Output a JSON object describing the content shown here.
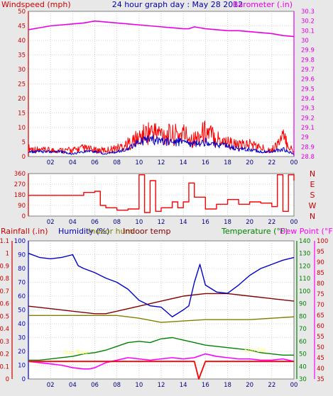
{
  "header": {
    "title": "24 hour graph day : May 28 2012",
    "left_label": "Windspeed (mph)",
    "right_label": "Barometer (.in)"
  },
  "colors": {
    "wind": "#ff0000",
    "gust": "#0000cc",
    "baro": "#e600e6",
    "axis_red": "#cc0000",
    "axis_blue": "#0000cc",
    "axis_green": "#008000",
    "humidity": "#0000cc",
    "indoor_hum": "#808000",
    "indoor_temp": "#800000",
    "temperature": "#008000",
    "dew_point": "#ff00ff",
    "rain": "#ff0000",
    "annotation": "#ffff66",
    "grid": "#b0b0b0"
  },
  "chart_data": [
    {
      "type": "line",
      "title": "24 hour graph day : May 28 2012",
      "xlabel": "",
      "x_ticks": [
        "02",
        "04",
        "06",
        "08",
        "10",
        "12",
        "14",
        "16",
        "18",
        "20",
        "22",
        "00"
      ],
      "x_range": [
        0,
        24
      ],
      "left_axis": {
        "label": "Windspeed (mph)",
        "ticks": [
          "0",
          "5",
          "10",
          "15",
          "20",
          "25",
          "30",
          "35",
          "40",
          "45",
          "50"
        ],
        "ylim": [
          0,
          50
        ]
      },
      "right_axis": {
        "label": "Barometer (.in)",
        "ticks": [
          "28.8",
          "28.9",
          "29",
          "29.1",
          "29.2",
          "29.3",
          "29.4",
          "29.5",
          "29.6",
          "29.7",
          "29.8",
          "29.9",
          "30",
          "30.1",
          "30.2",
          "30.3"
        ],
        "ylim": [
          28.8,
          30.3
        ]
      },
      "series": [
        {
          "axis": "right",
          "x": [
            0,
            1,
            2,
            3,
            4,
            5,
            6,
            7,
            8,
            9,
            10,
            11,
            12,
            13,
            14,
            14.5,
            15,
            15.5,
            16,
            17,
            18,
            19,
            20,
            21,
            22,
            23,
            24
          ],
          "values": [
            30.11,
            30.13,
            30.15,
            30.16,
            30.17,
            30.18,
            30.2,
            30.19,
            30.18,
            30.17,
            30.16,
            30.15,
            30.14,
            30.13,
            30.12,
            30.12,
            30.14,
            30.13,
            30.12,
            30.11,
            30.1,
            30.1,
            30.09,
            30.08,
            30.07,
            30.05,
            30.04
          ]
        },
        {
          "axis": "left",
          "x": [
            0,
            1,
            2,
            3,
            4,
            5,
            6,
            7,
            8,
            9,
            10,
            11,
            12,
            13,
            14,
            15,
            16,
            17,
            18,
            19,
            20,
            21,
            22,
            23,
            24
          ],
          "values": [
            2,
            2,
            2,
            2,
            1,
            2,
            2,
            1,
            2,
            3,
            6,
            7,
            6,
            6,
            6,
            5,
            6,
            5,
            4,
            3,
            3,
            2,
            2,
            3,
            1
          ]
        },
        {
          "axis": "left",
          "x": [
            0,
            1,
            2,
            3,
            4,
            5,
            6,
            7,
            8,
            9,
            10,
            11,
            12,
            13,
            14,
            15,
            16,
            17,
            18,
            19,
            20,
            21,
            22,
            23,
            24
          ],
          "values": [
            4,
            3,
            3,
            3,
            3,
            4,
            3,
            3,
            4,
            6,
            9,
            12,
            11,
            10,
            11,
            8,
            12,
            9,
            7,
            5,
            6,
            4,
            3,
            9,
            2
          ]
        }
      ]
    },
    {
      "type": "line",
      "x_ticks": [
        "02",
        "04",
        "06",
        "08",
        "10",
        "12",
        "14",
        "16",
        "18",
        "20",
        "22",
        "00"
      ],
      "x_range": [
        0,
        24
      ],
      "left_axis": {
        "ticks": [
          "0",
          "90",
          "180",
          "270",
          "360"
        ],
        "ylim": [
          0,
          360
        ]
      },
      "right_axis": {
        "ticks": [
          "N",
          "W",
          "S",
          "E",
          "N"
        ]
      },
      "series": [
        {
          "x": [
            0,
            2,
            4,
            5,
            6,
            6.5,
            7,
            8,
            9,
            10,
            10.5,
            11,
            11.5,
            12,
            13,
            13.5,
            14,
            14.5,
            15,
            16,
            17,
            18,
            19,
            20,
            21,
            22,
            22.5,
            23,
            23.5,
            24
          ],
          "values": [
            175,
            175,
            175,
            200,
            210,
            90,
            70,
            50,
            60,
            350,
            30,
            300,
            40,
            70,
            120,
            70,
            120,
            280,
            160,
            60,
            100,
            140,
            100,
            120,
            110,
            80,
            350,
            40,
            350,
            300
          ]
        }
      ]
    },
    {
      "type": "line",
      "legend": [
        "Rainfall (.in)",
        "Humidity (%)",
        "Indoor hum",
        "Indoor temp",
        "Temperature (°F)",
        "Dew Point (°F)"
      ],
      "x_ticks": [
        "02",
        "04",
        "06",
        "08",
        "10",
        "12",
        "14",
        "16",
        "18",
        "20",
        "22",
        "00"
      ],
      "x_range": [
        0,
        24
      ],
      "rain_axis": {
        "label": "Rainfall (.in)",
        "ticks": [
          "0",
          "0.1",
          "0.2",
          "0.3",
          "0.4",
          "0.5",
          "0.6",
          "0.7",
          "0.8",
          "0.9",
          "1",
          "1.1"
        ],
        "ylim": [
          0,
          1.1
        ]
      },
      "humidity_axis": {
        "label": "Humidity (%)",
        "ticks": [
          "0",
          "10",
          "20",
          "30",
          "40",
          "50",
          "60",
          "70",
          "80",
          "90",
          "100"
        ],
        "ylim": [
          0,
          100
        ]
      },
      "temp_axis": {
        "label": "Temperature (°F)",
        "ticks": [
          "30",
          "40",
          "50",
          "60",
          "70",
          "80",
          "90",
          "100",
          "110",
          "120",
          "130",
          "140"
        ],
        "ylim": [
          30,
          140
        ]
      },
      "dew_axis": {
        "label": "Dew Point (°F)",
        "ticks": [
          "35",
          "40",
          "45",
          "50",
          "55",
          "60",
          "65",
          "70",
          "75",
          "80",
          "85",
          "90",
          "95",
          "100"
        ],
        "ylim": [
          35,
          100
        ]
      },
      "annotations": [
        "Sun Rise",
        "Sun Set"
      ],
      "series": [
        {
          "name": "Rainfall (.in)",
          "x": [
            0,
            15,
            15.4,
            16,
            24
          ],
          "values": [
            0.14,
            0.14,
            0.0,
            0.14,
            0.14
          ]
        },
        {
          "name": "Humidity (%)",
          "x": [
            0,
            1,
            2,
            3,
            4,
            4.5,
            5,
            6,
            7,
            8,
            9,
            10,
            11,
            12,
            13,
            14,
            14.5,
            15,
            15.5,
            16,
            17,
            18,
            19,
            20,
            21,
            22,
            23,
            24
          ],
          "values": [
            91,
            88,
            87,
            88,
            90,
            82,
            80,
            77,
            73,
            70,
            65,
            57,
            53,
            52,
            45,
            50,
            53,
            70,
            83,
            68,
            63,
            62,
            68,
            75,
            80,
            83,
            86,
            88
          ]
        },
        {
          "name": "Indoor hum",
          "x": [
            0,
            2,
            4,
            6,
            8,
            10,
            12,
            14,
            16,
            18,
            20,
            22,
            24
          ],
          "values": [
            46,
            46,
            46,
            46,
            46,
            44,
            41,
            42,
            43,
            43,
            43,
            44,
            45
          ]
        },
        {
          "name": "Indoor temp",
          "x": [
            0,
            2,
            4,
            6,
            7,
            8,
            10,
            12,
            14,
            16,
            18,
            20,
            22,
            24
          ],
          "values": [
            88,
            86,
            84,
            82,
            82,
            84,
            88,
            92,
            96,
            98,
            98,
            96,
            94,
            92
          ]
        },
        {
          "name": "Temperature (°F)",
          "x": [
            0,
            1,
            2,
            3,
            4,
            5,
            6,
            7,
            8,
            9,
            10,
            11,
            12,
            13,
            14,
            15,
            16,
            17,
            18,
            19,
            20,
            21,
            22,
            23,
            24
          ],
          "values": [
            45,
            45,
            46,
            47,
            48,
            50,
            51,
            53,
            56,
            59,
            60,
            59,
            62,
            63,
            61,
            59,
            57,
            56,
            55,
            54,
            53,
            51,
            50,
            49,
            49
          ]
        },
        {
          "name": "Dew Point (°F)",
          "x": [
            0,
            1,
            2,
            3,
            4,
            5,
            5.5,
            6,
            7,
            8,
            9,
            10,
            11,
            12,
            13,
            14,
            15,
            16,
            17,
            18,
            19,
            20,
            21,
            22,
            23,
            24
          ],
          "values": [
            44,
            43,
            42,
            41,
            39,
            38,
            38,
            39,
            43,
            45,
            47,
            46,
            45,
            46,
            47,
            46,
            47,
            50,
            48,
            47,
            46,
            46,
            45,
            45,
            46,
            44
          ]
        }
      ]
    }
  ]
}
